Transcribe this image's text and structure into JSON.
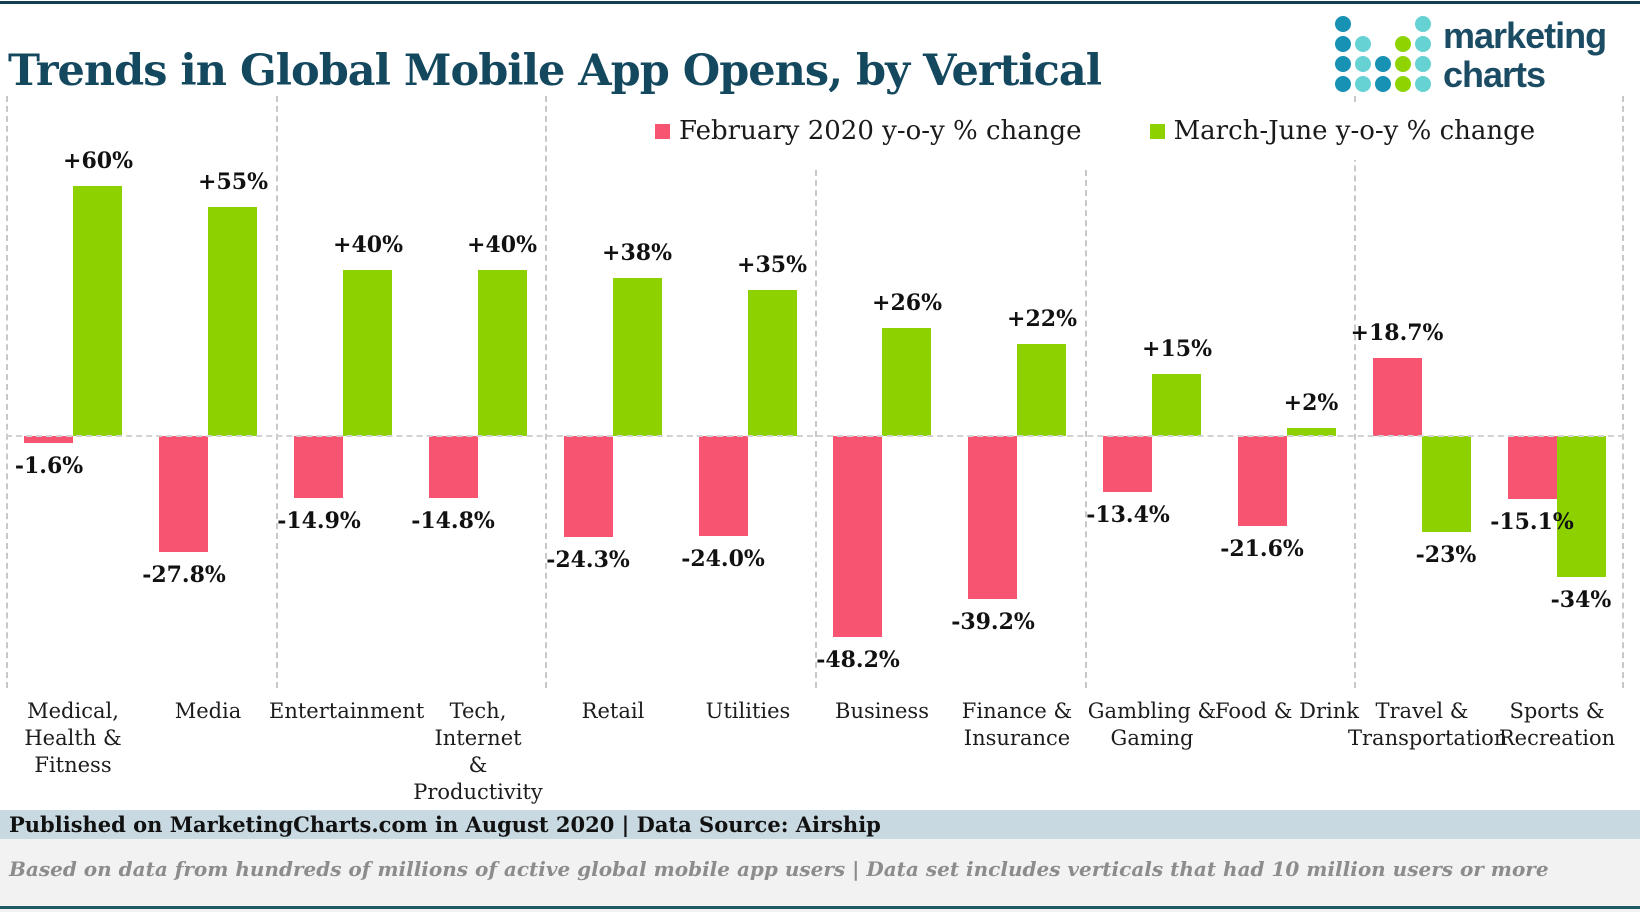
{
  "header": {
    "title": "Trends in Global Mobile App Opens, by Vertical",
    "title_color": "#14485E",
    "logo": {
      "word1": "marketing",
      "word2": "charts",
      "word_color": "#1B4C63",
      "dot_colors": {
        "dark": "#1791B4",
        "teal": "#66D2D4",
        "green": "#8FD400"
      },
      "dot_grid": [
        [
          "dark",
          null,
          null,
          null,
          "teal"
        ],
        [
          "dark",
          "teal",
          null,
          "green",
          "teal"
        ],
        [
          "dark",
          "teal",
          "dark",
          "green",
          "teal"
        ],
        [
          "dark",
          "teal",
          "dark",
          "green",
          "teal"
        ]
      ]
    }
  },
  "legend": {
    "items": [
      {
        "label": "February 2020 y-o-y % change",
        "color": "#F75472"
      },
      {
        "label": "March-June y-o-y % change",
        "color": "#8DD200"
      }
    ]
  },
  "chart_data": {
    "type": "bar",
    "title": "Trends in Global Mobile App Opens, by Vertical",
    "xlabel": "",
    "ylabel": "y-o-y % change",
    "ylim": [
      -55,
      70
    ],
    "grid": "dashed vertical group separators every 2 categories; dashed zero baseline",
    "legend_position": "top",
    "categories": [
      "Medical, Health & Fitness",
      "Media",
      "Entertainment",
      "Tech, Internet & Productivity",
      "Retail",
      "Utilities",
      "Business",
      "Finance & Insurance",
      "Gambling & Gaming",
      "Food & Drink",
      "Travel & Transportation",
      "Sports & Recreation"
    ],
    "category_tick_lines": [
      [
        "Medical,",
        "Health &",
        "Fitness"
      ],
      [
        "Media"
      ],
      [
        "Entertainment"
      ],
      [
        "Tech, Internet",
        "& Productivity"
      ],
      [
        "Retail"
      ],
      [
        "Utilities"
      ],
      [
        "Business"
      ],
      [
        "Finance &",
        "Insurance"
      ],
      [
        "Gambling &",
        "Gaming"
      ],
      [
        "Food & Drink"
      ],
      [
        "Travel &",
        "Transportation"
      ],
      [
        "Sports &",
        "Recreation"
      ]
    ],
    "series": [
      {
        "name": "February 2020 y-o-y % change",
        "color": "#F75472",
        "values": [
          -1.6,
          -27.8,
          -14.9,
          -14.8,
          -24.3,
          -24.0,
          -48.2,
          -39.2,
          -13.4,
          -21.6,
          18.7,
          -15.1
        ],
        "labels": [
          "-1.6%",
          "-27.8%",
          "-14.9%",
          "-14.8%",
          "-24.3%",
          "-24.0%",
          "-48.2%",
          "-39.2%",
          "-13.4%",
          "-21.6%",
          "+18.7%",
          "-15.1%"
        ]
      },
      {
        "name": "March-June y-o-y % change",
        "color": "#8DD200",
        "values": [
          60,
          55,
          40,
          40,
          38,
          35,
          26,
          22,
          15,
          2,
          -23,
          -34
        ],
        "labels": [
          "+60%",
          "+55%",
          "+40%",
          "+40%",
          "+38%",
          "+35%",
          "+26%",
          "+22%",
          "+15%",
          "+2%",
          "-23%",
          "-34%"
        ]
      }
    ]
  },
  "footer": {
    "published": "Published on MarketingCharts.com in August 2020 | Data Source: Airship",
    "published_bg": "#C8D9E2",
    "note": "Based on data from hundreds of millions of active global mobile app users | Data set includes verticals that had 10 million users or more",
    "note_bg": "#F2F2F2"
  },
  "rules": {
    "top_color": "#113F4F",
    "bottom_color": "#1E5A66"
  }
}
